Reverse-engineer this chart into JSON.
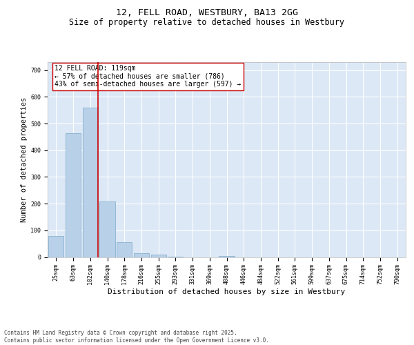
{
  "title": "12, FELL ROAD, WESTBURY, BA13 2GG",
  "subtitle": "Size of property relative to detached houses in Westbury",
  "xlabel": "Distribution of detached houses by size in Westbury",
  "ylabel": "Number of detached properties",
  "categories": [
    "25sqm",
    "63sqm",
    "102sqm",
    "140sqm",
    "178sqm",
    "216sqm",
    "255sqm",
    "293sqm",
    "331sqm",
    "369sqm",
    "408sqm",
    "446sqm",
    "484sqm",
    "522sqm",
    "561sqm",
    "599sqm",
    "637sqm",
    "675sqm",
    "714sqm",
    "752sqm",
    "790sqm"
  ],
  "values": [
    80,
    465,
    560,
    208,
    55,
    15,
    8,
    1,
    0,
    0,
    5,
    0,
    0,
    0,
    0,
    0,
    0,
    0,
    0,
    0,
    0
  ],
  "bar_color": "#b8d0e8",
  "bar_edge_color": "#7aaaca",
  "vline_x": 2.45,
  "vline_color": "#cc0000",
  "annotation_text": "12 FELL ROAD: 119sqm\n← 57% of detached houses are smaller (786)\n43% of semi-detached houses are larger (597) →",
  "annotation_box_color": "#ffffff",
  "annotation_box_edge": "#cc0000",
  "ylim": [
    0,
    730
  ],
  "yticks": [
    0,
    100,
    200,
    300,
    400,
    500,
    600,
    700
  ],
  "background_color": "#dce8f5",
  "grid_color": "#ffffff",
  "footer": "Contains HM Land Registry data © Crown copyright and database right 2025.\nContains public sector information licensed under the Open Government Licence v3.0.",
  "title_fontsize": 9.5,
  "subtitle_fontsize": 8.5,
  "axis_label_fontsize": 7.5,
  "tick_fontsize": 6,
  "annotation_fontsize": 7,
  "footer_fontsize": 5.5
}
